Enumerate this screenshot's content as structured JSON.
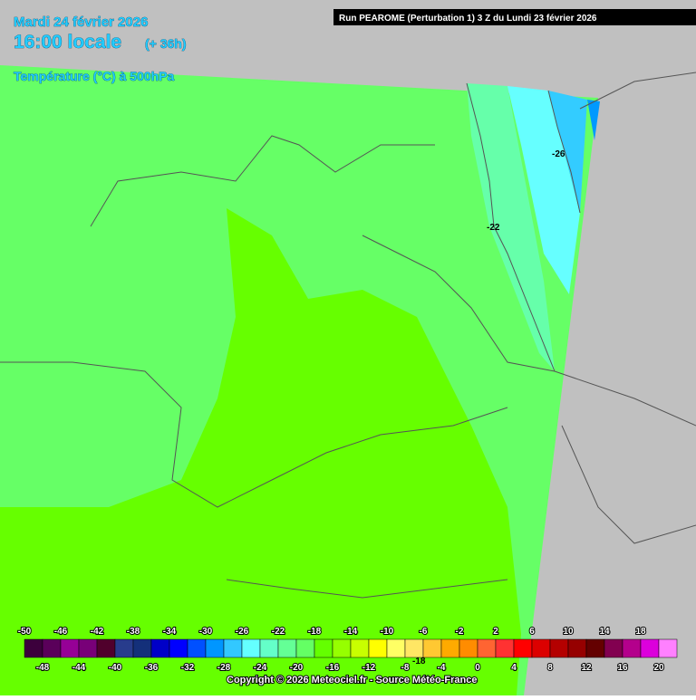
{
  "header": {
    "date": "Mardi 24 février 2026",
    "time": "16:00 locale",
    "lead": "(+ 36h)",
    "parameter": "Température (°C) à 500hPa",
    "run": "Run PEAROME (Perturbation 1) 3 Z du Lundi 23 février 2026"
  },
  "contour_labels": [
    "-26",
    "-22",
    "-18"
  ],
  "legend": {
    "values": [
      -50,
      -48,
      -46,
      -44,
      -42,
      -40,
      -38,
      -36,
      -34,
      -32,
      -30,
      -28,
      -26,
      -24,
      -22,
      -20,
      -18,
      -16,
      -14,
      -12,
      -10,
      -8,
      -6,
      -4,
      -2,
      0,
      2,
      4,
      6,
      8,
      10,
      12,
      14,
      16,
      18,
      20
    ],
    "colors": [
      "#3c003c",
      "#5a005a",
      "#960096",
      "#780078",
      "#50002c",
      "#283c8c",
      "#14307a",
      "#0000c8",
      "#0000ff",
      "#0050ff",
      "#0096ff",
      "#32c8ff",
      "#64ffff",
      "#64ffc8",
      "#64ff96",
      "#64ff64",
      "#64ff00",
      "#96ff00",
      "#c8ff00",
      "#ffff00",
      "#ffff64",
      "#ffe664",
      "#ffc832",
      "#ffaa00",
      "#ff8c00",
      "#ff6432",
      "#ff3232",
      "#ff0000",
      "#dc0000",
      "#b40000",
      "#960000",
      "#640000",
      "#820050",
      "#b4008c",
      "#dc00dc",
      "#ff80ff"
    ]
  },
  "copyright": "Copyright © 2026 Meteociel.fr - Source Météo-France"
}
